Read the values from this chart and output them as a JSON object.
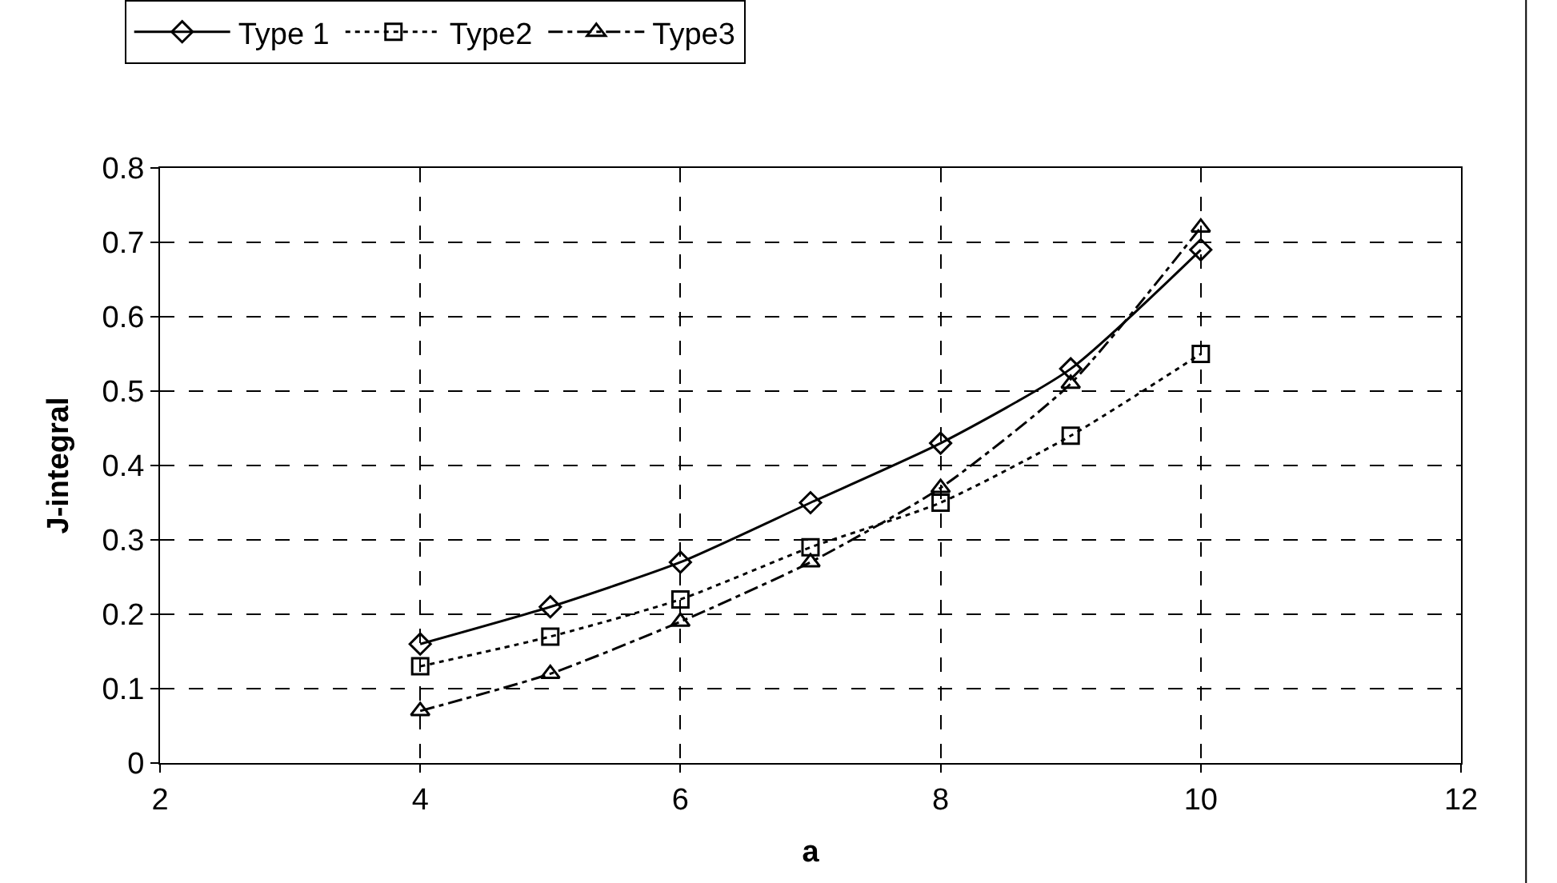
{
  "chart_data": {
    "type": "line",
    "xlabel": "a",
    "ylabel": "J-integral",
    "x": [
      4,
      5,
      6,
      7,
      8,
      9,
      10
    ],
    "series": [
      {
        "name": "Type 1",
        "color": "#000000",
        "marker": "diamond",
        "line_style": "solid",
        "values": [
          0.16,
          0.21,
          0.27,
          0.35,
          0.43,
          0.53,
          0.69
        ]
      },
      {
        "name": "Type2",
        "color": "#000000",
        "marker": "square",
        "line_style": "dotted",
        "values": [
          0.13,
          0.17,
          0.22,
          0.29,
          0.35,
          0.44,
          0.55
        ]
      },
      {
        "name": "Type3",
        "color": "#000000",
        "marker": "triangle",
        "line_style": "dashdot",
        "values": [
          0.07,
          0.12,
          0.19,
          0.27,
          0.37,
          0.51,
          0.72
        ]
      }
    ],
    "xlim": [
      2,
      12
    ],
    "xticks": [
      2,
      4,
      6,
      8,
      10,
      12
    ],
    "ylim": [
      0,
      0.8
    ],
    "yticks": [
      0,
      0.1,
      0.2,
      0.3,
      0.4,
      0.5,
      0.6,
      0.7,
      0.8
    ],
    "grid": true,
    "legend": "top"
  }
}
